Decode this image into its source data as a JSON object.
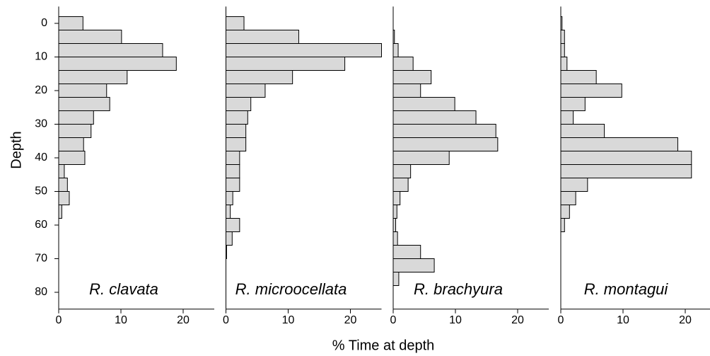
{
  "chart_data": {
    "type": "histogram",
    "orientation": "horizontal",
    "ylabel": "Depth",
    "xlabel": "% Time at depth",
    "bins": [
      -2,
      2,
      6,
      10,
      14,
      18,
      22,
      26,
      30,
      34,
      38,
      42,
      46,
      50,
      54,
      58,
      62,
      66,
      70,
      74,
      78,
      82
    ],
    "ylim": [
      -5,
      85
    ],
    "y_inverted": true,
    "yticks": [
      0,
      10,
      20,
      30,
      40,
      50,
      60,
      70,
      80
    ],
    "xlim": [
      0,
      25
    ],
    "xticks": [
      0,
      10,
      20
    ],
    "color": "#d9d9d9",
    "panels": [
      {
        "title": "R. clavata",
        "values": [
          3.9,
          10.1,
          16.7,
          18.9,
          11.0,
          7.7,
          8.2,
          5.6,
          5.2,
          4.0,
          4.2,
          0.9,
          1.4,
          1.7,
          0.5,
          0,
          0,
          0,
          0,
          0,
          0
        ]
      },
      {
        "title": "R. microocellata",
        "values": [
          2.9,
          11.7,
          25.0,
          19.1,
          10.7,
          6.3,
          4.0,
          3.5,
          3.2,
          3.2,
          2.2,
          2.2,
          2.2,
          1.1,
          0.7,
          2.2,
          1.0,
          0.1,
          0,
          0,
          0
        ]
      },
      {
        "title": "R. brachyura",
        "values": [
          0,
          0.2,
          0.8,
          3.2,
          6.1,
          4.4,
          9.9,
          13.3,
          16.5,
          16.8,
          9.0,
          2.8,
          2.4,
          1.1,
          0.6,
          0.4,
          0.7,
          4.4,
          6.6,
          0.9,
          0
        ]
      },
      {
        "title": "R. montagui",
        "values": [
          0.2,
          0.6,
          0.6,
          1.0,
          5.7,
          9.8,
          3.9,
          2.0,
          7.0,
          18.8,
          21.0,
          21.0,
          4.3,
          2.4,
          1.4,
          0.6,
          0,
          0,
          0,
          0,
          0
        ]
      }
    ]
  }
}
